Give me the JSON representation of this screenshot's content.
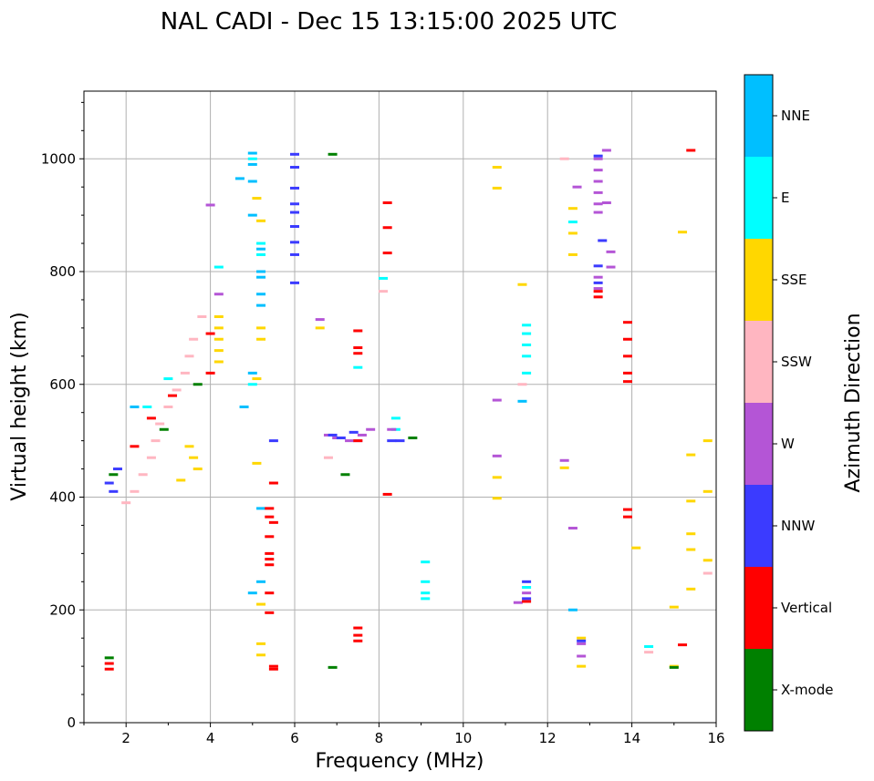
{
  "chart_data": {
    "type": "scatter",
    "title": "NAL CADI - Dec 15 13:15:00 2025 UTC",
    "xlabel": "Frequency (MHz)",
    "ylabel": "Virtual height (km)",
    "xlim": [
      1,
      16
    ],
    "ylim": [
      0,
      1120
    ],
    "xticks": [
      "2",
      "4",
      "6",
      "8",
      "10",
      "12",
      "14",
      "16"
    ],
    "yticks": [
      "0",
      "200",
      "400",
      "600",
      "800",
      "1000"
    ],
    "grid": true,
    "colorbar": {
      "title": "Azimuth Direction",
      "categories": [
        "X-mode",
        "Vertical",
        "NNW",
        "W",
        "SSW",
        "SSE",
        "E",
        "NNE"
      ],
      "colors": [
        "#008000",
        "#ff0000",
        "#3b3bff",
        "#b455d6",
        "#ffb6c1",
        "#ffd700",
        "#00ffff",
        "#00bfff"
      ]
    },
    "series": [
      {
        "name": "NNE",
        "points": [
          [
            5.0,
            1010
          ],
          [
            5.0,
            990
          ],
          [
            5.0,
            960
          ],
          [
            4.7,
            965
          ],
          [
            5.0,
            900
          ],
          [
            5.2,
            840
          ],
          [
            5.2,
            800
          ],
          [
            5.2,
            790
          ],
          [
            5.2,
            760
          ],
          [
            5.2,
            740
          ],
          [
            5.0,
            620
          ],
          [
            5.2,
            380
          ],
          [
            5.0,
            230
          ],
          [
            5.2,
            250
          ],
          [
            12.6,
            200
          ],
          [
            11.4,
            570
          ],
          [
            4.8,
            560
          ],
          [
            2.2,
            560
          ]
        ]
      },
      {
        "name": "E",
        "points": [
          [
            5.0,
            1000
          ],
          [
            5.2,
            850
          ],
          [
            5.2,
            830
          ],
          [
            4.2,
            808
          ],
          [
            5.0,
            600
          ],
          [
            8.4,
            540
          ],
          [
            8.4,
            520
          ],
          [
            9.1,
            285
          ],
          [
            9.1,
            250
          ],
          [
            9.1,
            230
          ],
          [
            9.1,
            220
          ],
          [
            11.5,
            705
          ],
          [
            11.5,
            690
          ],
          [
            11.5,
            670
          ],
          [
            11.5,
            650
          ],
          [
            11.5,
            620
          ],
          [
            11.5,
            240
          ],
          [
            12.6,
            888
          ],
          [
            8.1,
            788
          ],
          [
            14.4,
            135
          ],
          [
            7.5,
            630
          ],
          [
            2.5,
            560
          ],
          [
            3.0,
            610
          ]
        ]
      },
      {
        "name": "SSE",
        "points": [
          [
            4.2,
            720
          ],
          [
            4.2,
            700
          ],
          [
            4.2,
            680
          ],
          [
            4.2,
            660
          ],
          [
            4.2,
            640
          ],
          [
            5.1,
            930
          ],
          [
            5.2,
            890
          ],
          [
            5.2,
            700
          ],
          [
            5.2,
            680
          ],
          [
            5.1,
            610
          ],
          [
            5.1,
            460
          ],
          [
            5.2,
            210
          ],
          [
            5.2,
            140
          ],
          [
            5.2,
            120
          ],
          [
            6.6,
            700
          ],
          [
            10.8,
            985
          ],
          [
            10.8,
            948
          ],
          [
            10.8,
            435
          ],
          [
            10.8,
            398
          ],
          [
            11.4,
            777
          ],
          [
            12.6,
            912
          ],
          [
            12.6,
            868
          ],
          [
            12.6,
            830
          ],
          [
            12.4,
            452
          ],
          [
            12.8,
            150
          ],
          [
            12.8,
            100
          ],
          [
            14.1,
            310
          ],
          [
            15.2,
            870
          ],
          [
            15.4,
            475
          ],
          [
            15.4,
            393
          ],
          [
            15.4,
            335
          ],
          [
            15.4,
            307
          ],
          [
            15.4,
            237
          ],
          [
            15.0,
            205
          ],
          [
            15.0,
            100
          ],
          [
            15.8,
            500
          ],
          [
            15.8,
            410
          ],
          [
            15.8,
            288
          ],
          [
            3.5,
            490
          ],
          [
            3.6,
            470
          ],
          [
            3.7,
            450
          ],
          [
            3.3,
            430
          ]
        ]
      },
      {
        "name": "SSW",
        "points": [
          [
            3.8,
            720
          ],
          [
            3.6,
            680
          ],
          [
            3.5,
            650
          ],
          [
            3.4,
            620
          ],
          [
            3.2,
            590
          ],
          [
            3.0,
            560
          ],
          [
            2.8,
            530
          ],
          [
            2.7,
            500
          ],
          [
            2.6,
            470
          ],
          [
            2.4,
            440
          ],
          [
            2.2,
            410
          ],
          [
            2.0,
            390
          ],
          [
            12.4,
            1000
          ],
          [
            11.4,
            600
          ],
          [
            8.1,
            765
          ],
          [
            14.4,
            125
          ],
          [
            15.8,
            265
          ],
          [
            6.8,
            470
          ]
        ]
      },
      {
        "name": "W",
        "points": [
          [
            4.2,
            760
          ],
          [
            4.0,
            918
          ],
          [
            6.6,
            715
          ],
          [
            6.8,
            510
          ],
          [
            7.0,
            505
          ],
          [
            7.3,
            500
          ],
          [
            7.6,
            510
          ],
          [
            7.8,
            520
          ],
          [
            7.5,
            500
          ],
          [
            8.3,
            520
          ],
          [
            10.8,
            572
          ],
          [
            10.8,
            473
          ],
          [
            12.7,
            950
          ],
          [
            12.4,
            465
          ],
          [
            12.6,
            345
          ],
          [
            12.8,
            140
          ],
          [
            12.8,
            118
          ],
          [
            13.2,
            1000
          ],
          [
            13.2,
            980
          ],
          [
            13.2,
            960
          ],
          [
            13.2,
            940
          ],
          [
            13.2,
            920
          ],
          [
            13.2,
            905
          ],
          [
            13.2,
            790
          ],
          [
            13.2,
            770
          ],
          [
            13.4,
            1015
          ],
          [
            13.4,
            922
          ],
          [
            13.5,
            835
          ],
          [
            13.5,
            808
          ],
          [
            11.3,
            213
          ],
          [
            11.5,
            230
          ]
        ]
      },
      {
        "name": "NNW",
        "points": [
          [
            6.0,
            1008
          ],
          [
            6.0,
            985
          ],
          [
            6.0,
            948
          ],
          [
            6.0,
            920
          ],
          [
            6.0,
            880
          ],
          [
            6.0,
            852
          ],
          [
            6.0,
            830
          ],
          [
            6.0,
            780
          ],
          [
            6.0,
            905
          ],
          [
            5.5,
            500
          ],
          [
            6.9,
            510
          ],
          [
            7.1,
            505
          ],
          [
            7.4,
            515
          ],
          [
            8.3,
            500
          ],
          [
            8.5,
            500
          ],
          [
            11.5,
            250
          ],
          [
            11.5,
            220
          ],
          [
            13.2,
            810
          ],
          [
            13.2,
            780
          ],
          [
            13.2,
            1005
          ],
          [
            13.3,
            855
          ],
          [
            12.8,
            145
          ],
          [
            1.6,
            425
          ],
          [
            1.7,
            410
          ],
          [
            1.8,
            450
          ]
        ]
      },
      {
        "name": "Vertical",
        "points": [
          [
            5.4,
            300
          ],
          [
            5.4,
            290
          ],
          [
            5.4,
            280
          ],
          [
            5.4,
            380
          ],
          [
            5.4,
            365
          ],
          [
            5.4,
            330
          ],
          [
            5.4,
            230
          ],
          [
            5.4,
            195
          ],
          [
            5.5,
            425
          ],
          [
            5.5,
            355
          ],
          [
            5.5,
            100
          ],
          [
            5.5,
            95
          ],
          [
            7.5,
            695
          ],
          [
            7.5,
            665
          ],
          [
            7.5,
            655
          ],
          [
            7.5,
            500
          ],
          [
            7.5,
            168
          ],
          [
            7.5,
            155
          ],
          [
            7.5,
            145
          ],
          [
            8.2,
            922
          ],
          [
            8.2,
            878
          ],
          [
            8.2,
            833
          ],
          [
            8.2,
            405
          ],
          [
            11.5,
            215
          ],
          [
            13.2,
            765
          ],
          [
            13.2,
            755
          ],
          [
            13.9,
            710
          ],
          [
            13.9,
            680
          ],
          [
            13.9,
            650
          ],
          [
            13.9,
            620
          ],
          [
            13.9,
            605
          ],
          [
            13.9,
            378
          ],
          [
            13.9,
            365
          ],
          [
            15.2,
            138
          ],
          [
            15.4,
            1015
          ],
          [
            1.6,
            105
          ],
          [
            1.6,
            95
          ],
          [
            2.2,
            490
          ],
          [
            2.6,
            540
          ],
          [
            3.1,
            580
          ],
          [
            4.0,
            620
          ],
          [
            4.0,
            690
          ]
        ]
      },
      {
        "name": "X-mode",
        "points": [
          [
            6.9,
            1008
          ],
          [
            6.9,
            98
          ],
          [
            7.2,
            440
          ],
          [
            8.8,
            505
          ],
          [
            15.0,
            98
          ],
          [
            1.6,
            115
          ],
          [
            1.7,
            440
          ],
          [
            2.9,
            520
          ],
          [
            3.7,
            600
          ]
        ]
      }
    ]
  }
}
